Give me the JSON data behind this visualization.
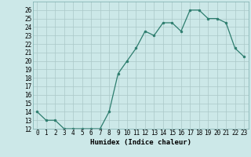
{
  "x": [
    0,
    1,
    2,
    3,
    4,
    5,
    6,
    7,
    8,
    9,
    10,
    11,
    12,
    13,
    14,
    15,
    16,
    17,
    18,
    19,
    20,
    21,
    22,
    23
  ],
  "y": [
    14,
    13,
    13,
    12,
    12,
    12,
    12,
    12,
    14,
    18.5,
    20,
    21.5,
    23.5,
    23,
    24.5,
    24.5,
    23.5,
    26,
    26,
    25,
    25,
    24.5,
    21.5,
    20.5
  ],
  "xlabel": "Humidex (Indice chaleur)",
  "xlim": [
    -0.5,
    23.5
  ],
  "ylim": [
    12,
    27
  ],
  "yticks": [
    12,
    13,
    14,
    15,
    16,
    17,
    18,
    19,
    20,
    21,
    22,
    23,
    24,
    25,
    26
  ],
  "xticks": [
    0,
    1,
    2,
    3,
    4,
    5,
    6,
    7,
    8,
    9,
    10,
    11,
    12,
    13,
    14,
    15,
    16,
    17,
    18,
    19,
    20,
    21,
    22,
    23
  ],
  "line_color": "#2d7d6e",
  "marker_color": "#2d7d6e",
  "bg_color": "#cce8e8",
  "grid_color": "#aac8c8",
  "label_fontsize": 6.5,
  "tick_fontsize": 5.5
}
